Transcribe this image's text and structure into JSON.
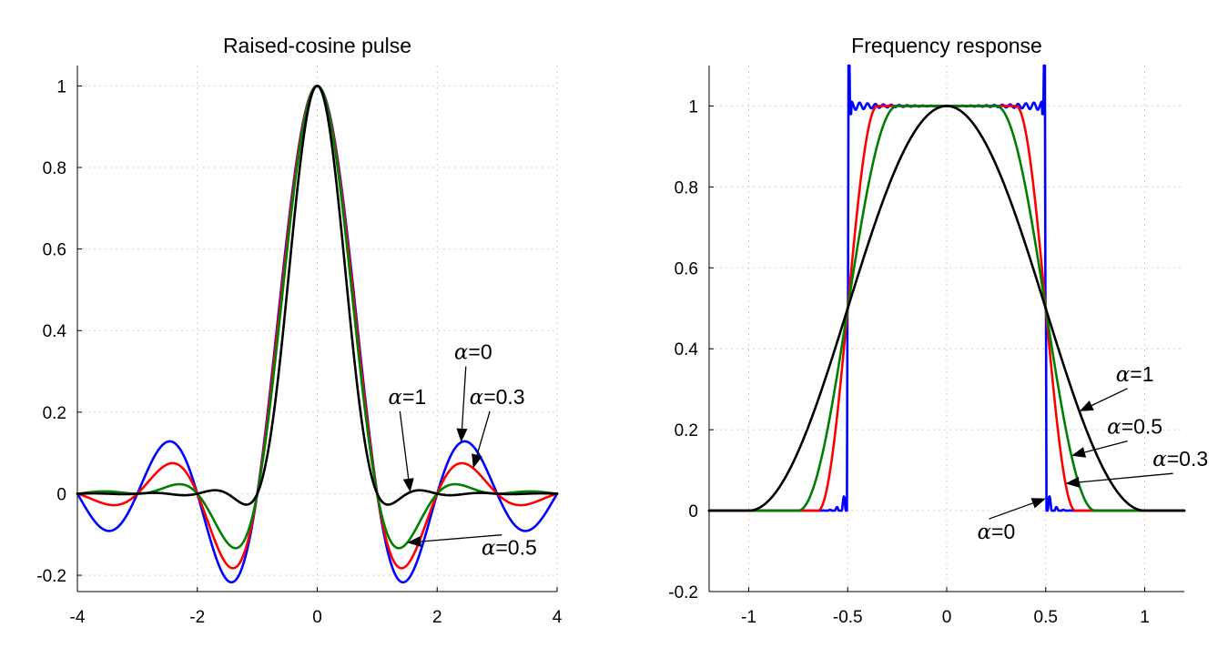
{
  "colors": {
    "alpha_0": "#0000ff",
    "alpha_0.3": "#ff0000",
    "alpha_0.5": "#008000",
    "alpha_1": "#000000"
  },
  "chart_data": [
    {
      "type": "line",
      "title": "Raised-cosine pulse",
      "xlabel": "",
      "ylabel": "",
      "xlim": [
        -4,
        4
      ],
      "ylim": [
        -0.24,
        1.05
      ],
      "xticks": [
        -4,
        -2,
        0,
        2,
        4
      ],
      "xticklabels": [
        "-4",
        "-2",
        "0",
        "2",
        "4"
      ],
      "yticks": [
        -0.2,
        0,
        0.2,
        0.4,
        0.6,
        0.8,
        1
      ],
      "yticklabels": [
        "-0.2",
        "0",
        "0.2",
        "0.4",
        "0.6",
        "0.8",
        "1"
      ],
      "grid": true,
      "legend": "none",
      "series": [
        {
          "name": "α=0",
          "alpha": 0,
          "color": "#0000ff",
          "function": "sinc(t)*cos(pi*alpha*t)/(1-(2*alpha*t)^2)"
        },
        {
          "name": "α=0.3",
          "alpha": 0.3,
          "color": "#ff0000",
          "function": "sinc(t)*cos(pi*alpha*t)/(1-(2*alpha*t)^2)"
        },
        {
          "name": "α=0.5",
          "alpha": 0.5,
          "color": "#008000",
          "function": "sinc(t)*cos(pi*alpha*t)/(1-(2*alpha*t)^2)"
        },
        {
          "name": "α=1",
          "alpha": 1,
          "color": "#000000",
          "function": "sinc(t)*cos(pi*alpha*t)/(1-(2*alpha*t)^2)"
        }
      ],
      "annotations": [
        {
          "greek": "α",
          "value": "=0",
          "series": "α=0",
          "pointer_x": 2.4,
          "label_x": 2.6,
          "label_y": 0.33
        },
        {
          "greek": "α",
          "value": "=0.3",
          "series": "α=0.3",
          "pointer_x": 2.6,
          "label_x": 3.0,
          "label_y": 0.22
        },
        {
          "greek": "α",
          "value": "=1",
          "series": "α=1",
          "pointer_x": 1.55,
          "label_x": 1.5,
          "label_y": 0.22
        },
        {
          "greek": "α",
          "value": "=0.5",
          "series": "α=0.5",
          "pointer_x": 1.5,
          "label_x": 3.2,
          "label_y": -0.15
        }
      ]
    },
    {
      "type": "line",
      "title": "Frequency response",
      "xlabel": "",
      "ylabel": "",
      "xlim": [
        -1.2,
        1.2
      ],
      "ylim": [
        -0.2,
        1.1
      ],
      "xticks": [
        -1,
        -0.5,
        0,
        0.5,
        1
      ],
      "xticklabels": [
        "-1",
        "-0.5",
        "0",
        "0.5",
        "1"
      ],
      "yticks": [
        -0.2,
        0,
        0.2,
        0.4,
        0.6,
        0.8,
        1
      ],
      "yticklabels": [
        "-0.2",
        "0",
        "0.2",
        "0.4",
        "0.6",
        "0.8",
        "1"
      ],
      "grid": true,
      "legend": "none",
      "series": [
        {
          "name": "α=0",
          "alpha": 0,
          "color": "#0000ff",
          "function": "ideal rectangle |f|<0.5 with Gibbs ripple"
        },
        {
          "name": "α=0.3",
          "alpha": 0.3,
          "color": "#ff0000",
          "function": "raised-cosine spectrum"
        },
        {
          "name": "α=0.5",
          "alpha": 0.5,
          "color": "#008000",
          "function": "raised-cosine spectrum"
        },
        {
          "name": "α=1",
          "alpha": 1,
          "color": "#000000",
          "function": "raised-cosine spectrum"
        }
      ],
      "annotations": [
        {
          "greek": "α",
          "value": "=1",
          "series": "α=1",
          "pointer_x": 0.67,
          "label_x": 0.95,
          "label_y": 0.32
        },
        {
          "greek": "α",
          "value": "=0.5",
          "series": "α=0.5",
          "pointer_x": 0.63,
          "label_x": 0.95,
          "label_y": 0.19
        },
        {
          "greek": "α",
          "value": "=0.3",
          "series": "α=0.3",
          "pointer_x": 0.6,
          "label_x": 1.18,
          "label_y": 0.11
        },
        {
          "greek": "α",
          "value": "=0",
          "series": "α=0",
          "pointer_x": 0.5,
          "label_x": 0.25,
          "label_y": -0.07
        }
      ]
    }
  ]
}
